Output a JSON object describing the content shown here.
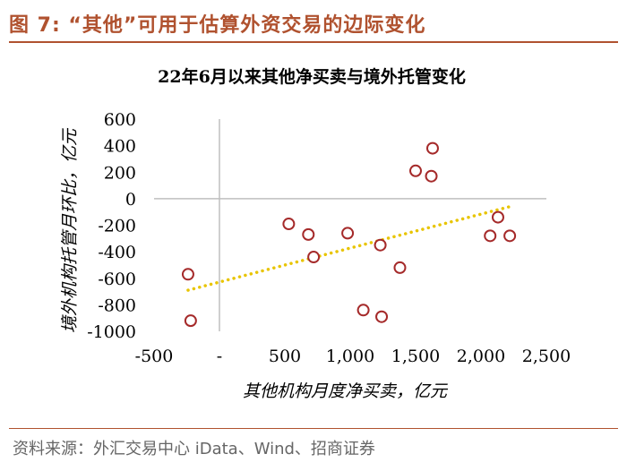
{
  "figure": {
    "title": "图 7:    “其他”可用于估算外资交易的边际变化",
    "source": "资料来源：外汇交易中心 iData、Wind、招商证券"
  },
  "colors": {
    "brand": "#b0522f",
    "marker": "#a52a2a",
    "trendline": "#e8c400",
    "axis": "#bfbfbf"
  },
  "chart_data": {
    "type": "scatter",
    "title": "22年6月以来其他净买卖与境外托管变化",
    "xlabel": "其他机构月度净买卖，亿元",
    "ylabel": "境外机构托管月环比，亿元",
    "xlim": [
      -500,
      2500
    ],
    "ylim": [
      -1000,
      600
    ],
    "x_ticks": [
      "-500",
      "-",
      "500",
      "1,000",
      "1,500",
      "2,000",
      "2,500"
    ],
    "y_ticks": [
      "600",
      "400",
      "200",
      "0",
      "-200",
      "-400",
      "-600",
      "-800",
      "-1000"
    ],
    "grid": false,
    "legend": "none",
    "points": [
      {
        "x": -240,
        "y": -570
      },
      {
        "x": -220,
        "y": -920
      },
      {
        "x": 530,
        "y": -190
      },
      {
        "x": 680,
        "y": -270
      },
      {
        "x": 720,
        "y": -440
      },
      {
        "x": 980,
        "y": -260
      },
      {
        "x": 1100,
        "y": -840
      },
      {
        "x": 1230,
        "y": -350
      },
      {
        "x": 1240,
        "y": -890
      },
      {
        "x": 1380,
        "y": -520
      },
      {
        "x": 1500,
        "y": 210
      },
      {
        "x": 1620,
        "y": 170
      },
      {
        "x": 1630,
        "y": 380
      },
      {
        "x": 2070,
        "y": -280
      },
      {
        "x": 2130,
        "y": -140
      },
      {
        "x": 2220,
        "y": -280
      }
    ],
    "trendline": {
      "x": [
        -240,
        2220
      ],
      "y": [
        -690,
        -60
      ]
    }
  }
}
